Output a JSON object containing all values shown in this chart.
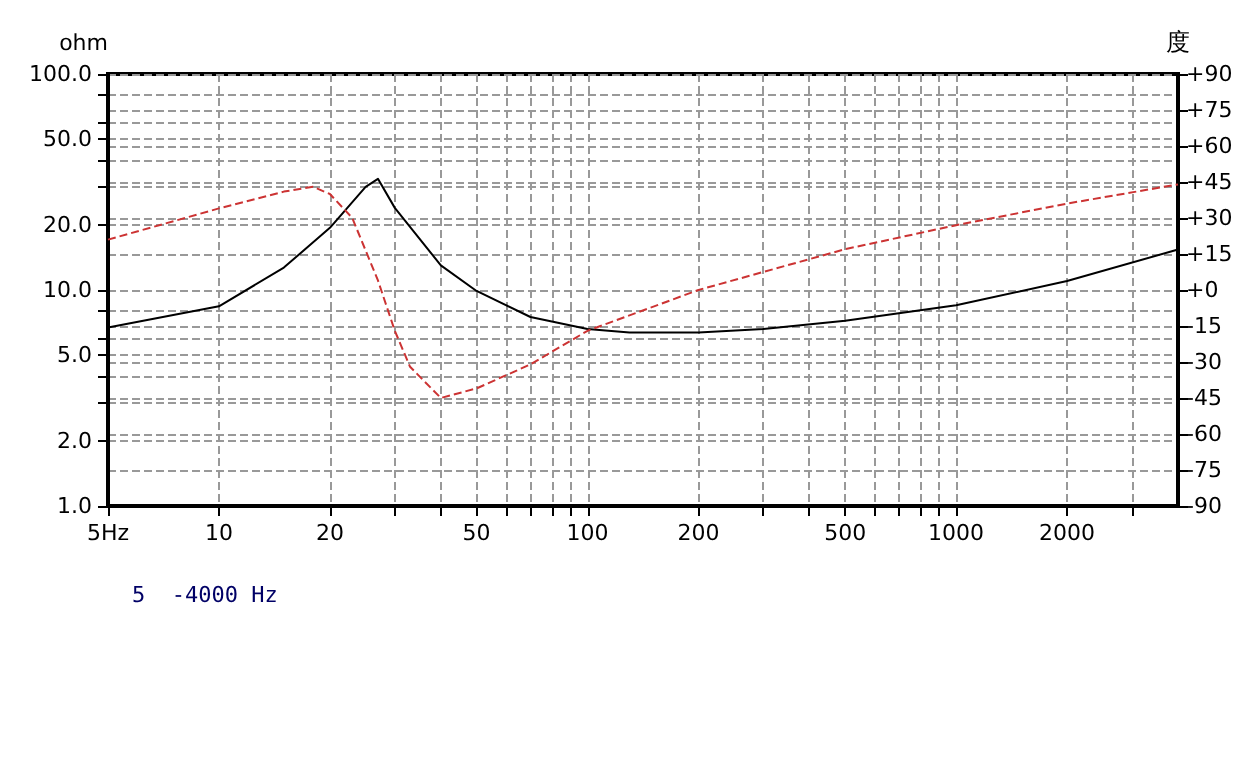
{
  "chart_data": {
    "type": "line",
    "ylabel": "ohm",
    "y2label": "度",
    "annotations": [
      "5  -4000 Hz"
    ],
    "log": "xy",
    "grid": true,
    "marker": "none",
    "xlim": [
      5,
      4000
    ],
    "xticks": [
      {
        "value": 5,
        "label": "5Hz"
      },
      10,
      20,
      {
        "value": 30,
        "label": null
      },
      {
        "value": 40,
        "label": null
      },
      50,
      {
        "value": 60,
        "label": null
      },
      {
        "value": 70,
        "label": null
      },
      {
        "value": 80,
        "label": null
      },
      {
        "value": 90,
        "label": null
      },
      100,
      200,
      {
        "value": 300,
        "label": null
      },
      {
        "value": 400,
        "label": null
      },
      500,
      {
        "value": 600,
        "label": null
      },
      {
        "value": 700,
        "label": null
      },
      {
        "value": 800,
        "label": null
      },
      {
        "value": 900,
        "label": null
      },
      1000,
      2000,
      {
        "value": 3000,
        "label": null
      }
    ],
    "ylim": [
      1,
      100
    ],
    "yticks": [
      {
        "value": 1,
        "label": "1.0"
      },
      {
        "value": 2,
        "label": "2.0"
      },
      {
        "value": 3,
        "label": null
      },
      {
        "value": 4,
        "label": null
      },
      {
        "value": 5,
        "label": "5.0"
      },
      {
        "value": 6,
        "label": null
      },
      {
        "value": 8,
        "label": null
      },
      {
        "value": 10,
        "label": "10.0"
      },
      {
        "value": 20,
        "label": "20.0"
      },
      {
        "value": 30,
        "label": null
      },
      {
        "value": 40,
        "label": null
      },
      {
        "value": 50,
        "label": "50.0"
      },
      {
        "value": 60,
        "label": null
      },
      {
        "value": 80,
        "label": null
      },
      {
        "value": 100,
        "label": "100.0"
      }
    ],
    "y2lim": [
      -90,
      90
    ],
    "y2ticks": [
      -90,
      -75,
      -60,
      -45,
      -30,
      -15,
      {
        "value": 0,
        "label": "+0"
      },
      {
        "value": 15,
        "label": "+15"
      },
      {
        "value": 30,
        "label": "+30"
      },
      {
        "value": 45,
        "label": "+45"
      },
      {
        "value": 60,
        "label": "+60"
      },
      {
        "value": 75,
        "label": "+75"
      },
      {
        "value": 90,
        "label": "+90"
      }
    ],
    "series": [
      {
        "color": "#000000",
        "line_style": "solid",
        "x": [
          5,
          10,
          15,
          20,
          25,
          27,
          30,
          40,
          50,
          70,
          100,
          130,
          200,
          300,
          500,
          1000,
          2000,
          4000
        ],
        "values": [
          6.7,
          8.4,
          12.7,
          19.4,
          30,
          32.7,
          24,
          13,
          9.9,
          7.5,
          6.6,
          6.35,
          6.35,
          6.6,
          7.2,
          8.5,
          11,
          15.4
        ]
      },
      {
        "color": "#cc3333",
        "line_style": "dashed",
        "axis": "y2",
        "x": [
          5,
          10,
          15,
          18,
          20,
          23,
          27,
          30,
          33,
          40,
          50,
          70,
          100,
          200,
          500,
          1000,
          2000,
          4000
        ],
        "values": [
          21,
          34,
          41,
          43,
          40,
          30,
          4,
          -17,
          -32,
          -45,
          -41,
          -31,
          -17,
          0,
          17,
          27,
          36,
          44
        ]
      }
    ]
  }
}
